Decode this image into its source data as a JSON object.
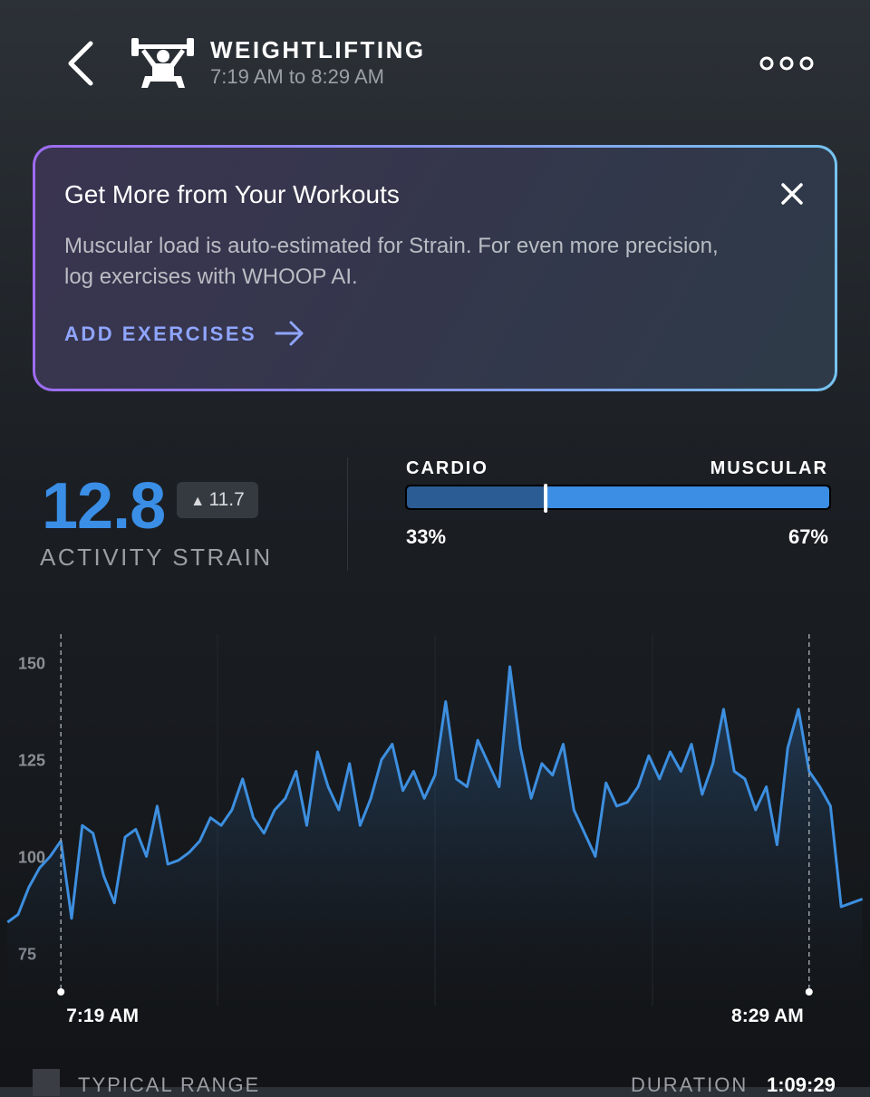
{
  "header": {
    "title": "WEIGHTLIFTING",
    "subtitle": "7:19 AM to 8:29 AM"
  },
  "card": {
    "title": "Get More from Your Workouts",
    "body": "Muscular load is auto-estimated for Strain. For even more precision, log exercises with WHOOP AI.",
    "action": "ADD EXERCISES"
  },
  "strain": {
    "value": "12.8",
    "change": "11.7",
    "label": "ACTIVITY STRAIN"
  },
  "split": {
    "cardio": {
      "label": "CARDIO",
      "value": 33,
      "value_label": "33%"
    },
    "muscular": {
      "label": "MUSCULAR",
      "value": 67,
      "value_label": "67%"
    }
  },
  "chart_data": {
    "type": "line",
    "color": "#3d8fe0",
    "x": [
      434,
      435,
      436,
      437,
      438,
      439,
      440,
      441,
      442,
      443,
      444,
      445,
      446,
      447,
      448,
      449,
      450,
      451,
      452,
      453,
      454,
      455,
      456,
      457,
      458,
      459,
      460,
      461,
      462,
      463,
      464,
      465,
      466,
      467,
      468,
      469,
      470,
      471,
      472,
      473,
      474,
      475,
      476,
      477,
      478,
      479,
      480,
      481,
      482,
      483,
      484,
      485,
      486,
      487,
      488,
      489,
      490,
      491,
      492,
      493,
      494,
      495,
      496,
      497,
      498,
      499,
      500,
      501,
      502,
      503,
      504,
      505,
      506,
      507,
      508,
      509,
      510,
      511,
      512,
      513,
      514
    ],
    "values": [
      83,
      85,
      92,
      97,
      100,
      104,
      84,
      108,
      106,
      95,
      88,
      105,
      107,
      100,
      113,
      98,
      99,
      101,
      104,
      110,
      108,
      112,
      120,
      110,
      106,
      112,
      115,
      122,
      108,
      127,
      118,
      112,
      124,
      108,
      115,
      125,
      129,
      117,
      122,
      115,
      121,
      140,
      120,
      118,
      130,
      124,
      118,
      149,
      128,
      115,
      124,
      121,
      129,
      112,
      106,
      100,
      119,
      113,
      114,
      118,
      126,
      120,
      127,
      122,
      129,
      116,
      124,
      138,
      122,
      120,
      112,
      118,
      103,
      128,
      138,
      122,
      118,
      113,
      87,
      88,
      89
    ],
    "xlim": [
      433.3,
      514.7
    ],
    "xticks": [
      {
        "value": 439,
        "label": "7:19 AM"
      },
      {
        "value": 509,
        "label": "8:29 AM"
      }
    ],
    "ylim": [
      65,
      160
    ],
    "yticks": [
      75,
      100,
      125,
      150
    ]
  },
  "footer": {
    "legend": "TYPICAL RANGE",
    "duration_label": "DURATION",
    "duration": "1:09:29"
  }
}
